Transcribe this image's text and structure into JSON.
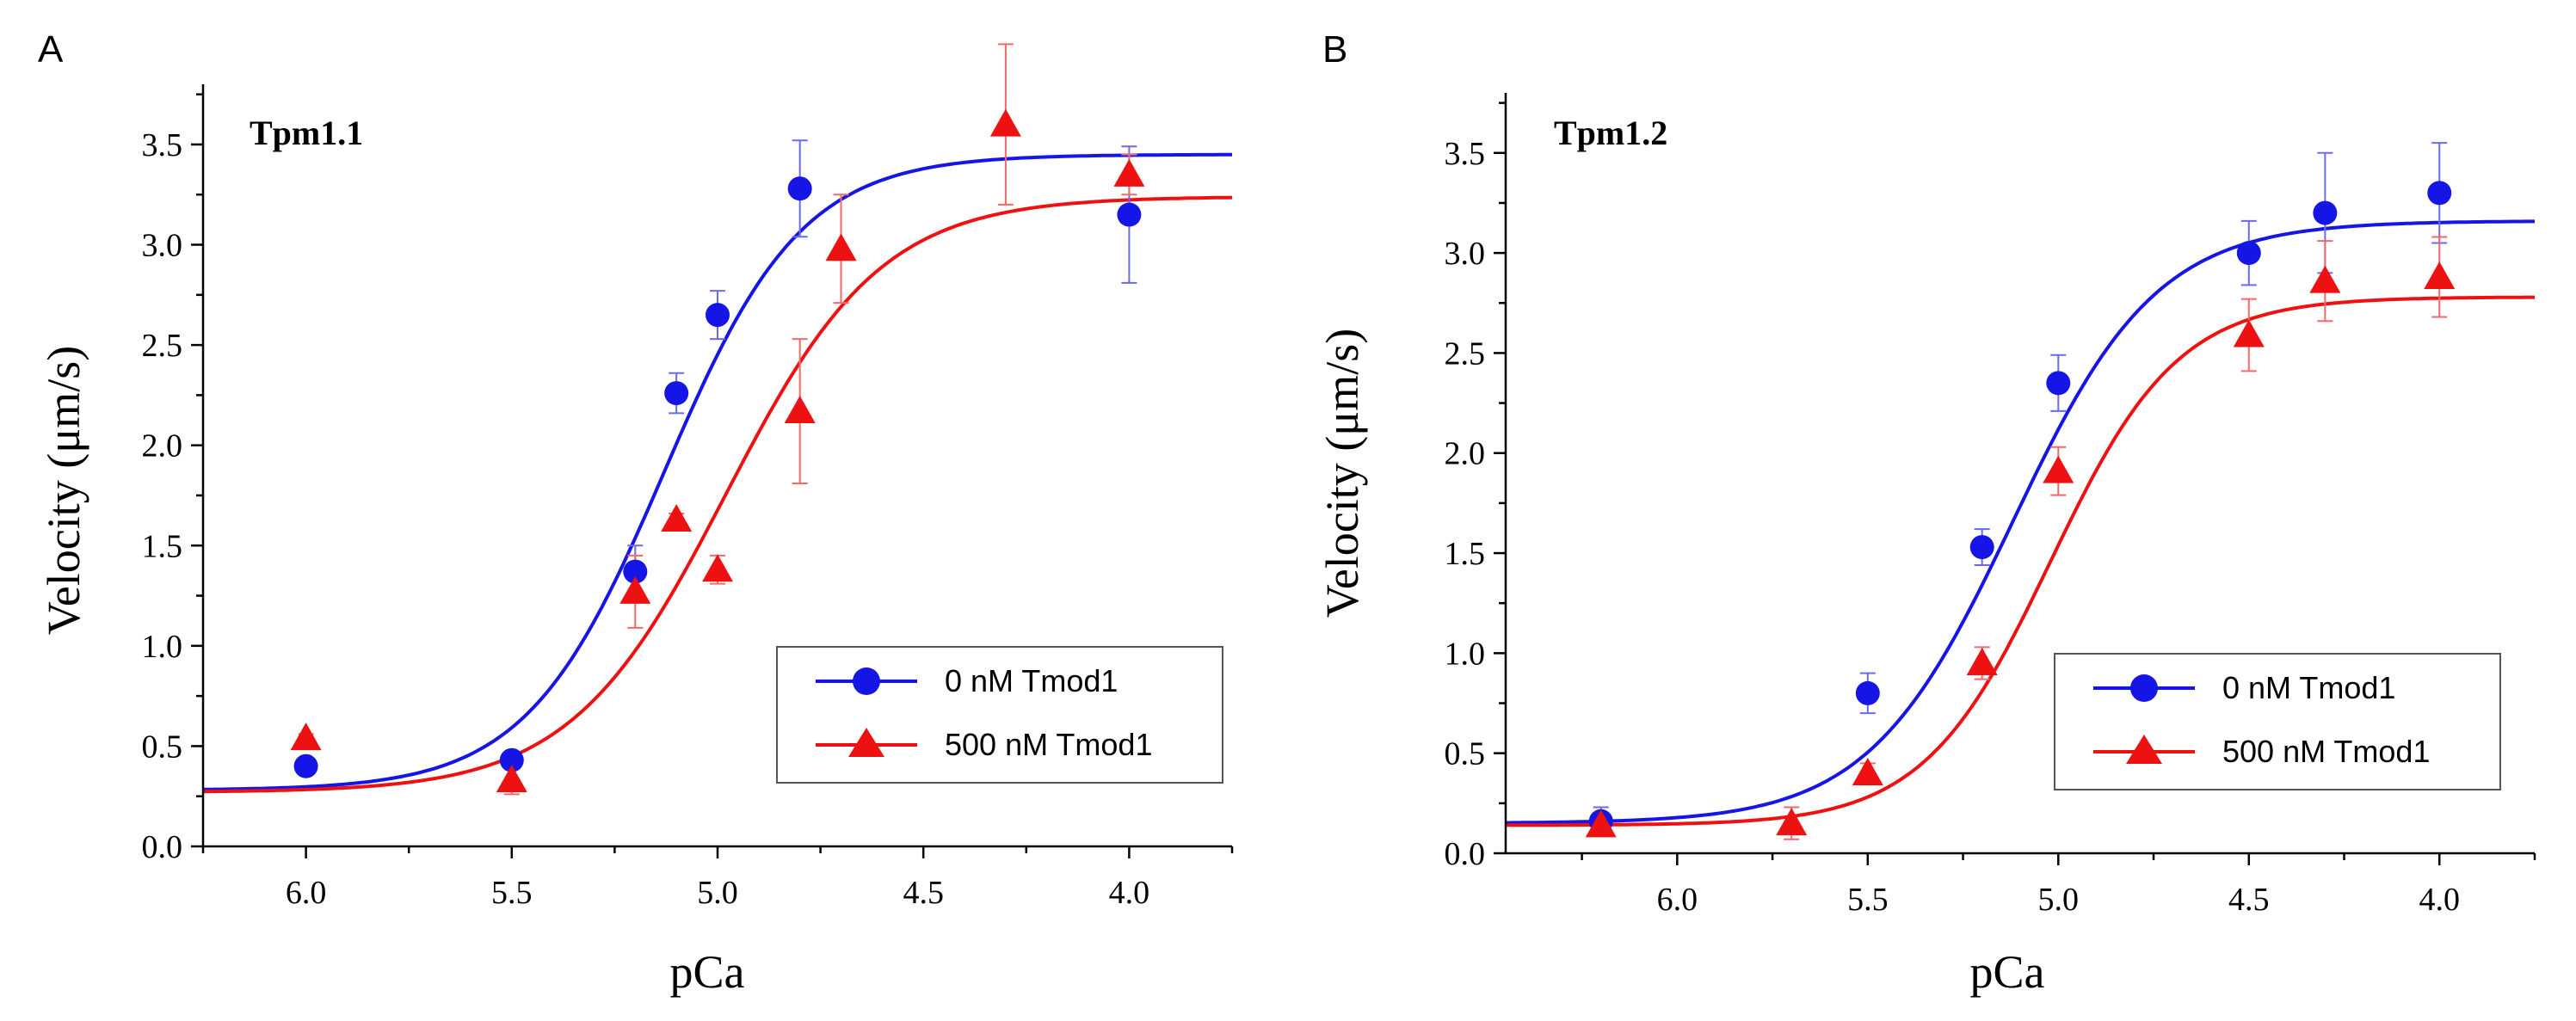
{
  "colors": {
    "blue": "#1515e6",
    "red": "#ee1111",
    "errBlue": "#6a6af0",
    "errRed": "#f06a6a"
  },
  "chart_data": [
    {
      "panel": "A",
      "type": "scatter",
      "title": "Tpm1.1",
      "xlabel": "pCa",
      "ylabel": "Velocity (μm/s)",
      "xlim": [
        6.25,
        3.75
      ],
      "ylim": [
        0,
        3.8
      ],
      "x_reversed": true,
      "xticks": [
        "6.0",
        "5.5",
        "5.0",
        "4.5",
        "4.0"
      ],
      "xtick_values": [
        6.0,
        5.5,
        5.0,
        4.5,
        4.0
      ],
      "yticks": [
        "0.0",
        "0.5",
        "1.0",
        "1.5",
        "2.0",
        "2.5",
        "3.0",
        "3.5"
      ],
      "ytick_values": [
        0,
        0.5,
        1.0,
        1.5,
        2.0,
        2.5,
        3.0,
        3.5
      ],
      "legend_position": "bottom-right",
      "series": [
        {
          "name": "0 nM Tmod1",
          "color": "blue",
          "marker": "circle",
          "points": [
            {
              "x": 6.0,
              "y": 0.4,
              "err": 0.03
            },
            {
              "x": 5.5,
              "y": 0.43,
              "err": 0.03
            },
            {
              "x": 5.2,
              "y": 1.37,
              "err": 0.13
            },
            {
              "x": 5.1,
              "y": 2.26,
              "err": 0.1
            },
            {
              "x": 5.0,
              "y": 2.65,
              "err": 0.12
            },
            {
              "x": 4.8,
              "y": 3.28,
              "err": 0.24
            },
            {
              "x": 4.0,
              "y": 3.15,
              "err": 0.34
            }
          ],
          "fit": {
            "bottom": 0.28,
            "top": 3.45,
            "pCa50": 5.13,
            "hill": 2.6
          }
        },
        {
          "name": "500 nM Tmod1",
          "color": "red",
          "marker": "triangle",
          "points": [
            {
              "x": 6.0,
              "y": 0.54,
              "err": 0.02
            },
            {
              "x": 5.5,
              "y": 0.33,
              "err": 0.07
            },
            {
              "x": 5.2,
              "y": 1.27,
              "err": 0.18
            },
            {
              "x": 5.1,
              "y": 1.63,
              "err": 0.03
            },
            {
              "x": 5.0,
              "y": 1.38,
              "err": 0.07
            },
            {
              "x": 4.8,
              "y": 2.17,
              "err": 0.36
            },
            {
              "x": 4.7,
              "y": 2.98,
              "err": 0.27
            },
            {
              "x": 4.3,
              "y": 3.6,
              "err": 0.4
            },
            {
              "x": 4.0,
              "y": 3.35,
              "err": 0.1
            }
          ],
          "fit": {
            "bottom": 0.27,
            "top": 3.24,
            "pCa50": 4.98,
            "hill": 2.3
          }
        }
      ]
    },
    {
      "panel": "B",
      "type": "scatter",
      "title": "Tpm1.2",
      "xlabel": "pCa",
      "ylabel": "Velocity (μm/s)",
      "xlim": [
        6.45,
        3.75
      ],
      "ylim": [
        0,
        3.8
      ],
      "x_reversed": true,
      "xticks": [
        "6.0",
        "5.5",
        "5.0",
        "4.5",
        "4.0"
      ],
      "xtick_values": [
        6.0,
        5.5,
        5.0,
        4.5,
        4.0
      ],
      "yticks": [
        "0.0",
        "0.5",
        "1.0",
        "1.5",
        "2.0",
        "2.5",
        "3.0",
        "3.5"
      ],
      "ytick_values": [
        0,
        0.5,
        1.0,
        1.5,
        2.0,
        2.5,
        3.0,
        3.5
      ],
      "legend_position": "bottom-right",
      "series": [
        {
          "name": "0 nM Tmod1",
          "color": "blue",
          "marker": "circle",
          "points": [
            {
              "x": 6.2,
              "y": 0.16,
              "err": 0.07
            },
            {
              "x": 5.5,
              "y": 0.8,
              "err": 0.1
            },
            {
              "x": 5.2,
              "y": 1.53,
              "err": 0.09
            },
            {
              "x": 5.0,
              "y": 2.35,
              "err": 0.14
            },
            {
              "x": 4.5,
              "y": 3.0,
              "err": 0.16
            },
            {
              "x": 4.3,
              "y": 3.2,
              "err": 0.3
            },
            {
              "x": 4.0,
              "y": 3.3,
              "err": 0.25
            }
          ],
          "fit": {
            "bottom": 0.15,
            "top": 3.16,
            "pCa50": 5.12,
            "hill": 2.3
          }
        },
        {
          "name": "500 nM Tmod1",
          "color": "red",
          "marker": "triangle",
          "points": [
            {
              "x": 6.2,
              "y": 0.14,
              "err": 0.05
            },
            {
              "x": 5.7,
              "y": 0.15,
              "err": 0.08
            },
            {
              "x": 5.5,
              "y": 0.4,
              "err": 0.05
            },
            {
              "x": 5.2,
              "y": 0.95,
              "err": 0.08
            },
            {
              "x": 5.0,
              "y": 1.91,
              "err": 0.12
            },
            {
              "x": 4.5,
              "y": 2.59,
              "err": 0.18
            },
            {
              "x": 4.3,
              "y": 2.86,
              "err": 0.2
            },
            {
              "x": 4.0,
              "y": 2.88,
              "err": 0.2
            }
          ],
          "fit": {
            "bottom": 0.14,
            "top": 2.78,
            "pCa50": 5.02,
            "hill": 2.6
          }
        }
      ]
    }
  ]
}
